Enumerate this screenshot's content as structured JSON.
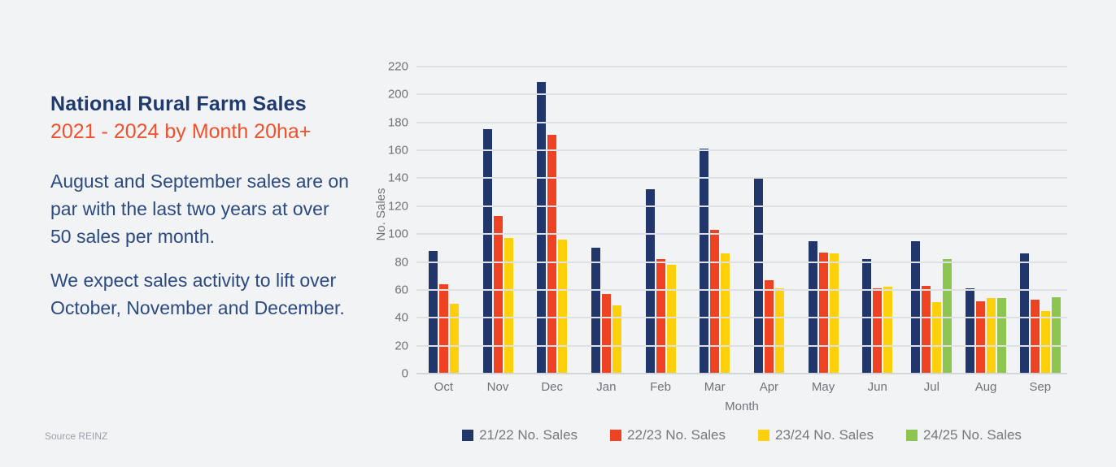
{
  "panel": {
    "title": "National Rural Farm Sales",
    "subtitle": "2021 - 2024 by Month 20ha+",
    "paragraphs": [
      "August and September sales are on par with the last two years at over 50 sales per month.",
      "We expect sales activity to lift over October, November and December."
    ],
    "source": "Source REINZ"
  },
  "colors": {
    "background": "#f2f3f5",
    "title_navy": "#1e3a6e",
    "subtitle_orange": "#f0502b",
    "body_navy": "#2b4a80",
    "axis_text": "#6f7378",
    "legend_text": "#75787d",
    "gridline": "#dee0e3",
    "source_gray": "#9aa1ab"
  },
  "chart_data": {
    "type": "bar",
    "title": "",
    "categories": [
      "Oct",
      "Nov",
      "Dec",
      "Jan",
      "Feb",
      "Mar",
      "Apr",
      "May",
      "Jun",
      "Jul",
      "Aug",
      "Sep"
    ],
    "series": [
      {
        "name": "21/22 No. Sales",
        "color": "#21366b",
        "values": [
          88,
          175,
          209,
          90,
          132,
          161,
          140,
          95,
          82,
          95,
          61,
          86
        ]
      },
      {
        "name": "22/23 No. Sales",
        "color": "#ee4323",
        "values": [
          64,
          113,
          171,
          57,
          82,
          103,
          67,
          87,
          61,
          63,
          52,
          53
        ]
      },
      {
        "name": "23/24 No. Sales",
        "color": "#fcd00a",
        "values": [
          50,
          97,
          96,
          49,
          78,
          86,
          61,
          86,
          62,
          51,
          54,
          45
        ]
      },
      {
        "name": "24/25 No. Sales",
        "color": "#8dc550",
        "values": [
          null,
          null,
          null,
          null,
          null,
          null,
          null,
          null,
          null,
          82,
          54,
          55
        ]
      }
    ],
    "xlabel": "Month",
    "ylabel": "No. Sales",
    "ylim": [
      0,
      220
    ],
    "ytick_step": 20,
    "grid": true,
    "legend_position": "bottom"
  }
}
